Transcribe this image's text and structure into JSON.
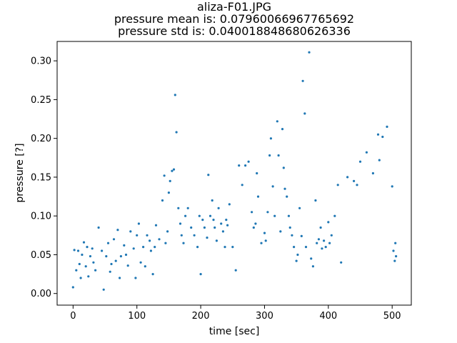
{
  "chart_data": {
    "type": "scatter",
    "title": "aliza-F01.JPG",
    "subtitle_lines": [
      "pressure mean is: 0.07960066967765692",
      "pressure std is: 0.040018848680626336"
    ],
    "xlabel": "time [sec]",
    "ylabel": "pressure [?]",
    "xlim": [
      -25,
      530
    ],
    "ylim": [
      -0.015,
      0.325
    ],
    "xticks": [
      0,
      100,
      200,
      300,
      400,
      500
    ],
    "yticks": [
      0.0,
      0.05,
      0.1,
      0.15,
      0.2,
      0.25,
      0.3
    ],
    "xtick_labels": [
      "0",
      "100",
      "200",
      "300",
      "400",
      "500"
    ],
    "ytick_labels": [
      "0.00",
      "0.05",
      "0.10",
      "0.15",
      "0.20",
      "0.25",
      "0.30"
    ],
    "marker_color": "#1f77b4",
    "grid": false,
    "x": [
      0,
      2,
      5,
      8,
      10,
      12,
      14,
      17,
      20,
      22,
      24,
      27,
      30,
      32,
      35,
      40,
      45,
      48,
      52,
      55,
      58,
      60,
      64,
      67,
      70,
      73,
      75,
      80,
      83,
      86,
      90,
      95,
      98,
      100,
      103,
      106,
      110,
      113,
      116,
      120,
      122,
      125,
      128,
      130,
      135,
      140,
      143,
      145,
      148,
      150,
      152,
      155,
      158,
      160,
      162,
      165,
      168,
      170,
      173,
      176,
      180,
      185,
      190,
      195,
      198,
      200,
      203,
      206,
      210,
      212,
      215,
      218,
      220,
      222,
      225,
      228,
      232,
      235,
      238,
      240,
      242,
      245,
      250,
      255,
      260,
      265,
      270,
      275,
      280,
      283,
      286,
      288,
      290,
      295,
      300,
      302,
      305,
      308,
      310,
      313,
      316,
      320,
      322,
      325,
      328,
      330,
      332,
      335,
      338,
      340,
      343,
      346,
      350,
      352,
      355,
      358,
      360,
      363,
      365,
      370,
      373,
      376,
      380,
      382,
      385,
      388,
      390,
      393,
      396,
      400,
      402,
      405,
      410,
      415,
      420,
      430,
      440,
      445,
      450,
      460,
      470,
      478,
      480,
      485,
      492,
      500,
      502,
      504,
      505,
      506
    ],
    "y": [
      0.008,
      0.056,
      0.03,
      0.055,
      0.038,
      0.02,
      0.05,
      0.066,
      0.035,
      0.06,
      0.022,
      0.048,
      0.058,
      0.04,
      0.03,
      0.085,
      0.055,
      0.005,
      0.048,
      0.065,
      0.028,
      0.038,
      0.07,
      0.042,
      0.082,
      0.02,
      0.048,
      0.062,
      0.05,
      0.036,
      0.08,
      0.058,
      0.02,
      0.075,
      0.09,
      0.04,
      0.06,
      0.035,
      0.075,
      0.068,
      0.055,
      0.025,
      0.06,
      0.088,
      0.07,
      0.12,
      0.152,
      0.065,
      0.08,
      0.13,
      0.145,
      0.158,
      0.16,
      0.256,
      0.208,
      0.11,
      0.09,
      0.075,
      0.065,
      0.1,
      0.11,
      0.085,
      0.075,
      0.06,
      0.1,
      0.025,
      0.095,
      0.085,
      0.072,
      0.153,
      0.1,
      0.12,
      0.095,
      0.085,
      0.068,
      0.11,
      0.09,
      0.08,
      0.06,
      0.095,
      0.088,
      0.115,
      0.06,
      0.03,
      0.165,
      0.14,
      0.165,
      0.17,
      0.105,
      0.085,
      0.09,
      0.155,
      0.125,
      0.065,
      0.078,
      0.068,
      0.105,
      0.178,
      0.2,
      0.138,
      0.1,
      0.222,
      0.178,
      0.08,
      0.212,
      0.162,
      0.135,
      0.125,
      0.1,
      0.085,
      0.075,
      0.06,
      0.042,
      0.05,
      0.11,
      0.074,
      0.274,
      0.232,
      0.06,
      0.311,
      0.045,
      0.035,
      0.12,
      0.065,
      0.07,
      0.085,
      0.058,
      0.068,
      0.06,
      0.092,
      0.065,
      0.075,
      0.1,
      0.14,
      0.04,
      0.15,
      0.145,
      0.14,
      0.17,
      0.182,
      0.155,
      0.205,
      0.172,
      0.202,
      0.215,
      0.138,
      0.055,
      0.042,
      0.065,
      0.048
    ]
  }
}
